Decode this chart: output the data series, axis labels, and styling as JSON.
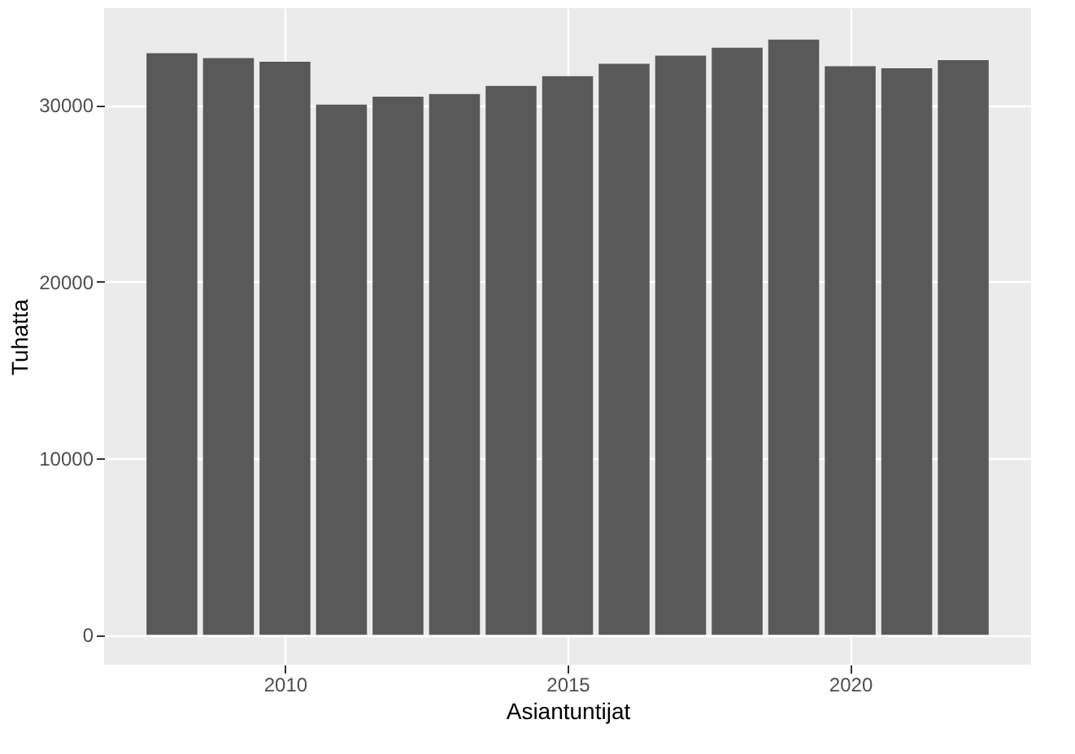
{
  "chart_data": {
    "type": "bar",
    "xlabel": "Asiantuntijat",
    "ylabel": "Tuhatta",
    "x": [
      2008,
      2009,
      2010,
      2011,
      2012,
      2013,
      2014,
      2015,
      2016,
      2017,
      2018,
      2019,
      2020,
      2021,
      2022
    ],
    "values": [
      32940,
      32660,
      32450,
      30020,
      30480,
      30620,
      31080,
      31640,
      32340,
      32800,
      33250,
      33710,
      32200,
      32090,
      32550
    ],
    "color": "#595959",
    "xlim": [
      2006.8,
      2023.2
    ],
    "xticks": [
      2010,
      2015,
      2020
    ],
    "ylim": [
      -1690,
      35490
    ],
    "yticks": [
      0,
      10000,
      20000,
      30000
    ],
    "grid": true
  }
}
